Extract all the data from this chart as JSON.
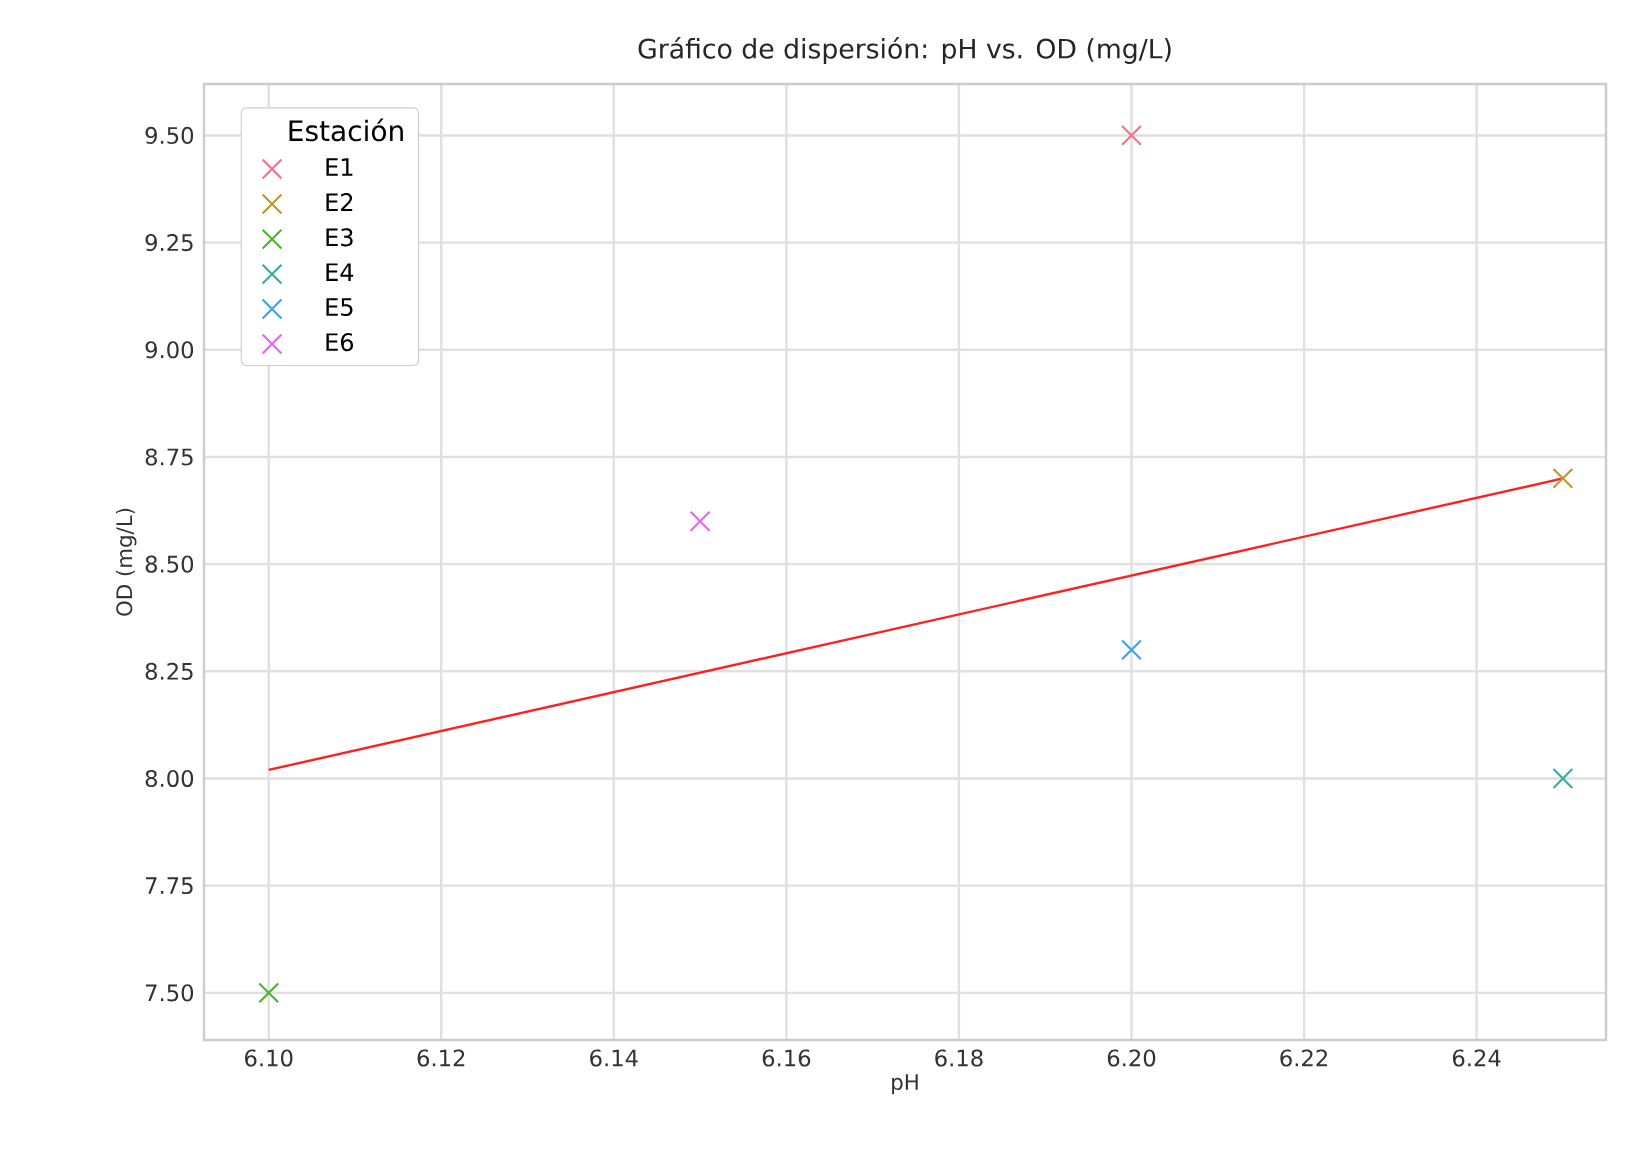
{
  "chart_data": {
    "type": "scatter",
    "title": "Gráfico de dispersión: pH vs. OD (mg/L)",
    "xlabel": "pH",
    "ylabel": "OD (mg/L)",
    "legend_title": "Estación",
    "xlim": [
      6.0925,
      6.255
    ],
    "ylim": [
      7.39,
      9.62
    ],
    "xticks": [
      {
        "value": 6.1,
        "label": "6.10"
      },
      {
        "value": 6.12,
        "label": "6.12"
      },
      {
        "value": 6.14,
        "label": "6.14"
      },
      {
        "value": 6.16,
        "label": "6.16"
      },
      {
        "value": 6.18,
        "label": "6.18"
      },
      {
        "value": 6.2,
        "label": "6.20"
      },
      {
        "value": 6.22,
        "label": "6.22"
      },
      {
        "value": 6.24,
        "label": "6.24"
      }
    ],
    "yticks": [
      {
        "value": 7.5,
        "label": "7.50"
      },
      {
        "value": 7.75,
        "label": "7.75"
      },
      {
        "value": 8.0,
        "label": "8.00"
      },
      {
        "value": 8.25,
        "label": "8.25"
      },
      {
        "value": 8.5,
        "label": "8.50"
      },
      {
        "value": 8.75,
        "label": "8.75"
      },
      {
        "value": 9.0,
        "label": "9.00"
      },
      {
        "value": 9.25,
        "label": "9.25"
      },
      {
        "value": 9.5,
        "label": "9.50"
      }
    ],
    "grid": true,
    "legend": "top left",
    "marker": "cross",
    "series": [
      {
        "name": "E1",
        "color": "#f77189",
        "x": [
          6.2
        ],
        "values": [
          9.5
        ]
      },
      {
        "name": "E2",
        "color": "#bb9832",
        "x": [
          6.25
        ],
        "values": [
          8.7
        ]
      },
      {
        "name": "E3",
        "color": "#50b131",
        "x": [
          6.1
        ],
        "values": [
          7.5
        ]
      },
      {
        "name": "E4",
        "color": "#36ada4",
        "x": [
          6.25
        ],
        "values": [
          8.0
        ]
      },
      {
        "name": "E5",
        "color": "#3ba3ec",
        "x": [
          6.2
        ],
        "values": [
          8.3
        ]
      },
      {
        "name": "E6",
        "color": "#e866f4",
        "x": [
          6.15
        ],
        "values": [
          8.6
        ]
      },
      {
        "type": "line",
        "color": "#ff2020",
        "x": [
          6.1,
          6.25
        ],
        "values": [
          8.02,
          8.7
        ],
        "marker": "none",
        "line_style": "solid"
      }
    ]
  }
}
